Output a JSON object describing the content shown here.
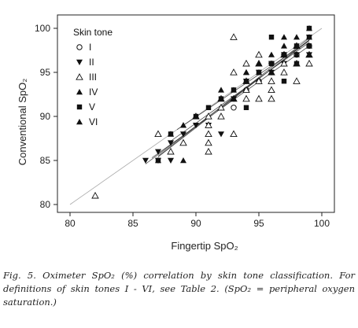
{
  "chart_data": {
    "type": "scatter",
    "title": "",
    "xlabel": "Fingertip SpO₂",
    "ylabel": "Conventional SpO₂",
    "xlim": [
      80,
      100
    ],
    "ylim": [
      80,
      100
    ],
    "xticks": [
      80,
      85,
      90,
      95,
      100
    ],
    "yticks": [
      80,
      85,
      90,
      95,
      100
    ],
    "grid": false,
    "legend_title": "Skin tone",
    "legend_position": "top-left",
    "identity_line": true,
    "series": [
      {
        "name": "I",
        "marker": "circle-open",
        "points": [
          [
            93,
            91
          ],
          [
            94,
            93
          ],
          [
            95,
            94
          ],
          [
            96,
            96
          ],
          [
            97,
            97
          ],
          [
            98,
            97
          ],
          [
            99,
            98
          ]
        ],
        "fit": [
          [
            88.5,
            88.5
          ],
          [
            99,
            98.6
          ]
        ]
      },
      {
        "name": "II",
        "marker": "triangle-down",
        "points": [
          [
            86,
            85
          ],
          [
            87,
            86
          ],
          [
            87,
            85
          ],
          [
            88,
            85
          ],
          [
            88,
            87
          ],
          [
            89,
            88
          ],
          [
            90,
            89
          ],
          [
            91,
            89
          ],
          [
            92,
            88
          ],
          [
            93,
            92
          ],
          [
            94,
            94
          ],
          [
            95,
            95
          ],
          [
            96,
            96
          ],
          [
            96,
            95
          ],
          [
            97,
            96
          ],
          [
            97,
            97
          ],
          [
            98,
            97
          ],
          [
            99,
            99
          ],
          [
            99,
            97
          ]
        ],
        "fit": [
          [
            86,
            84.6
          ],
          [
            99,
            98.6
          ]
        ]
      },
      {
        "name": "III",
        "marker": "triangle-open",
        "points": [
          [
            82,
            81
          ],
          [
            87,
            88
          ],
          [
            88,
            86
          ],
          [
            89,
            87
          ],
          [
            90,
            90
          ],
          [
            91,
            90
          ],
          [
            91,
            89
          ],
          [
            91,
            88
          ],
          [
            91,
            87
          ],
          [
            91,
            86
          ],
          [
            92,
            91
          ],
          [
            92,
            92
          ],
          [
            92,
            90
          ],
          [
            93,
            99
          ],
          [
            93,
            95
          ],
          [
            93,
            92
          ],
          [
            93,
            88
          ],
          [
            94,
            96
          ],
          [
            94,
            94
          ],
          [
            94,
            93
          ],
          [
            94,
            92
          ],
          [
            95,
            97
          ],
          [
            95,
            96
          ],
          [
            95,
            94
          ],
          [
            95,
            92
          ],
          [
            96,
            95
          ],
          [
            96,
            94
          ],
          [
            96,
            93
          ],
          [
            96,
            92
          ],
          [
            97,
            97
          ],
          [
            97,
            96
          ],
          [
            97,
            95
          ],
          [
            98,
            98
          ],
          [
            98,
            96
          ],
          [
            98,
            94
          ],
          [
            99,
            97
          ],
          [
            99,
            96
          ]
        ],
        "fit": [
          [
            86.5,
            85.3
          ],
          [
            99,
            98
          ]
        ]
      },
      {
        "name": "IV",
        "marker": "triangle-up",
        "points": [
          [
            87,
            85
          ],
          [
            88,
            88
          ],
          [
            89,
            89
          ],
          [
            89,
            85
          ],
          [
            90,
            90
          ],
          [
            92,
            93
          ],
          [
            93,
            93
          ],
          [
            94,
            95
          ],
          [
            95,
            95
          ],
          [
            96,
            97
          ],
          [
            97,
            99
          ],
          [
            98,
            99
          ],
          [
            98,
            97
          ],
          [
            99,
            100
          ],
          [
            99,
            98
          ]
        ],
        "fit": [
          [
            87,
            85.4
          ],
          [
            99,
            98.7
          ]
        ]
      },
      {
        "name": "V",
        "marker": "square",
        "points": [
          [
            87,
            85
          ],
          [
            88,
            88
          ],
          [
            90,
            90
          ],
          [
            91,
            91
          ],
          [
            92,
            92
          ],
          [
            93,
            93
          ],
          [
            94,
            91
          ],
          [
            94,
            94
          ],
          [
            95,
            95
          ],
          [
            96,
            99
          ],
          [
            96,
            96
          ],
          [
            97,
            94
          ],
          [
            97,
            97
          ],
          [
            98,
            98
          ],
          [
            98,
            96
          ],
          [
            99,
            100
          ],
          [
            99,
            99
          ],
          [
            99,
            98
          ]
        ],
        "fit": [
          [
            87,
            85.5
          ],
          [
            99,
            98.9
          ]
        ]
      },
      {
        "name": "VI",
        "marker": "triangle-up",
        "points": [
          [
            88,
            88
          ],
          [
            89,
            89
          ],
          [
            90,
            90
          ],
          [
            92,
            92
          ],
          [
            93,
            92
          ],
          [
            94,
            95
          ],
          [
            95,
            96
          ],
          [
            96,
            95
          ],
          [
            97,
            98
          ],
          [
            98,
            98
          ],
          [
            99,
            99
          ],
          [
            99,
            97
          ]
        ],
        "fit": [
          [
            88,
            87.2
          ],
          [
            99,
            98.4
          ]
        ]
      }
    ]
  },
  "caption": "Fig. 5. Oximeter SpO₂ (%) correlation by skin tone classification. For definitions of skin tones I - VI, see Table 2. (SpO₂ = peripheral oxygen saturation.)"
}
